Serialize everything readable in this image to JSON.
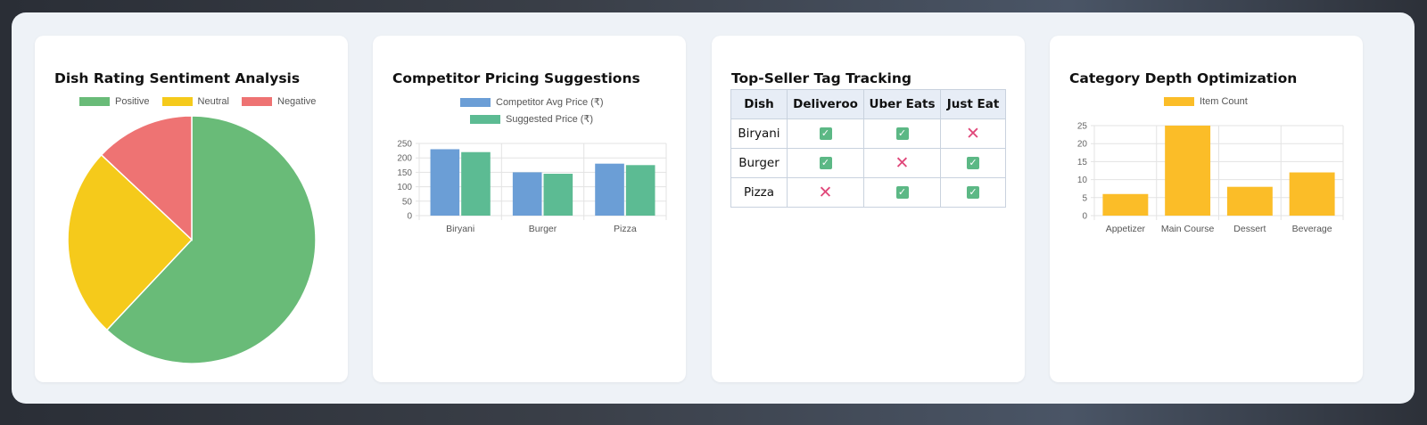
{
  "colors": {
    "positive": "#69bb78",
    "neutral": "#f5ca1b",
    "negative": "#ee7373",
    "competitor": "#6b9ed6",
    "suggested": "#5cbb93",
    "item": "#fbbd28",
    "check": "#5cb885",
    "cross": "#e0487a"
  },
  "cards": {
    "sentiment": {
      "title": "Dish Rating Sentiment Analysis"
    },
    "pricing": {
      "title": "Competitor Pricing Suggestions"
    },
    "tags": {
      "title": "Top-Seller Tag Tracking",
      "columns": [
        "Dish",
        "Deliveroo",
        "Uber Eats",
        "Just Eat"
      ],
      "rows": [
        {
          "dish": "Biryani",
          "deliveroo": "check-icon",
          "uber_eats": "check-icon",
          "just_eat": "cross-icon"
        },
        {
          "dish": "Burger",
          "deliveroo": "check-icon",
          "uber_eats": "cross-icon",
          "just_eat": "check-icon"
        },
        {
          "dish": "Pizza",
          "deliveroo": "cross-icon",
          "uber_eats": "check-icon",
          "just_eat": "check-icon"
        }
      ]
    },
    "category": {
      "title": "Category Depth Optimization"
    }
  },
  "chart_data": [
    {
      "type": "pie",
      "title": "Dish Rating Sentiment Analysis",
      "legend": "top",
      "categories": [
        "Positive",
        "Neutral",
        "Negative"
      ],
      "values": [
        62,
        25,
        13
      ]
    },
    {
      "type": "bar",
      "title": "Competitor Pricing Suggestions",
      "legend": "top",
      "categories": [
        "Biryani",
        "Burger",
        "Pizza"
      ],
      "series": [
        {
          "name": "Competitor Avg Price (₹)",
          "values": [
            230,
            150,
            180
          ]
        },
        {
          "name": "Suggested Price (₹)",
          "values": [
            220,
            145,
            175
          ]
        }
      ],
      "ylim": [
        0,
        250
      ],
      "yticks": [
        0,
        50,
        100,
        150,
        200,
        250
      ],
      "grid": true
    },
    {
      "type": "bar",
      "title": "Category Depth Optimization",
      "legend": "top",
      "categories": [
        "Appetizer",
        "Main Course",
        "Dessert",
        "Beverage"
      ],
      "series": [
        {
          "name": "Item Count",
          "values": [
            6,
            25,
            8,
            12
          ]
        }
      ],
      "ylim": [
        0,
        25
      ],
      "yticks": [
        0,
        5,
        10,
        15,
        20,
        25
      ],
      "grid": true
    }
  ]
}
